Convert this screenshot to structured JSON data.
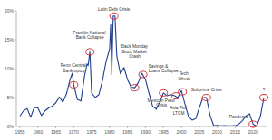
{
  "chart_data": {
    "type": "line",
    "color": "#1f3f8f",
    "x": [
      1955,
      1956,
      1957,
      1958,
      1959,
      1960,
      1961,
      1962,
      1963,
      1964,
      1965,
      1966,
      1967,
      1968,
      1969,
      1969.6,
      1970,
      1971,
      1972,
      1973,
      1973.7,
      1974,
      1974.5,
      1975,
      1976,
      1977,
      1978,
      1979,
      1980,
      1980.3,
      1980.6,
      1981,
      1981.5,
      1982,
      1983,
      1984,
      1985,
      1986,
      1987,
      1988,
      1989,
      1990,
      1991,
      1992,
      1993,
      1994,
      1995,
      1996,
      1997,
      1998,
      1999,
      2000,
      2001,
      2002,
      2003,
      2004,
      2005,
      2006,
      2007,
      2008,
      2009,
      2010,
      2011,
      2012,
      2013,
      2014,
      2015,
      2016,
      2017,
      2018,
      2019,
      2020,
      2021,
      2022,
      2023
    ],
    "values": [
      1.8,
      2.7,
      3.1,
      1.6,
      3.3,
      3.2,
      1.9,
      2.7,
      3.2,
      3.5,
      4.1,
      5.1,
      4.2,
      5.7,
      8.2,
      9.2,
      7.2,
      4.7,
      4.4,
      8.7,
      10.8,
      10.5,
      12.9,
      5.8,
      5.0,
      5.5,
      7.9,
      11.2,
      13.4,
      17.6,
      9.0,
      19.1,
      19.1,
      12.2,
      9.1,
      10.2,
      8.1,
      6.8,
      6.7,
      7.6,
      9.2,
      8.1,
      5.7,
      3.5,
      3.0,
      4.2,
      5.8,
      5.3,
      5.5,
      5.35,
      5.0,
      6.2,
      3.9,
      1.7,
      1.1,
      1.35,
      3.2,
      5.0,
      5.0,
      1.9,
      0.16,
      0.18,
      0.1,
      0.14,
      0.11,
      0.09,
      0.13,
      0.4,
      1.0,
      1.8,
      2.2,
      0.4,
      0.08,
      1.7,
      5.0
    ],
    "xlim": [
      1954,
      2024
    ],
    "xticks": [
      1955,
      1960,
      1965,
      1970,
      1975,
      1980,
      1985,
      1990,
      1995,
      2000,
      2005,
      2010,
      2015,
      2020
    ],
    "ylim": [
      0,
      20
    ],
    "yticks": [
      {
        "value": 0,
        "label": "0%"
      },
      {
        "value": 5,
        "label": "5%"
      },
      {
        "value": 10,
        "label": "10%"
      },
      {
        "value": 15,
        "label": "15%"
      },
      {
        "value": 20,
        "label": "20%"
      }
    ],
    "grid": false,
    "annotations": [
      {
        "text": "Penn Central Bankruptcy",
        "x": 1970,
        "y": 7.2
      },
      {
        "text": "Franklin National Bank Collapse",
        "x": 1974.5,
        "y": 12.9
      },
      {
        "text": "Latin Debt Crisis",
        "x": 1981.2,
        "y": 19.1
      },
      {
        "text": "Black Monday Stock Market Crash",
        "x": 1987,
        "y": 6.7
      },
      {
        "text": "Savings & Loans Collapse",
        "x": 1989.3,
        "y": 9.0
      },
      {
        "text": "Mexican Peso Crisis",
        "x": 1995,
        "y": 5.8
      },
      {
        "text": "Asia Flu/ LTCM",
        "x": 1998.5,
        "y": 5.3
      },
      {
        "text": "Tech Wreck",
        "x": 2000.3,
        "y": 6.0
      },
      {
        "text": "Subprime Crisis",
        "x": 2007,
        "y": 5.0
      },
      {
        "text": "Pandemic",
        "x": 2020,
        "y": 0.4
      },
      {
        "text": "?",
        "x": 2023,
        "y": 5.0
      }
    ]
  }
}
